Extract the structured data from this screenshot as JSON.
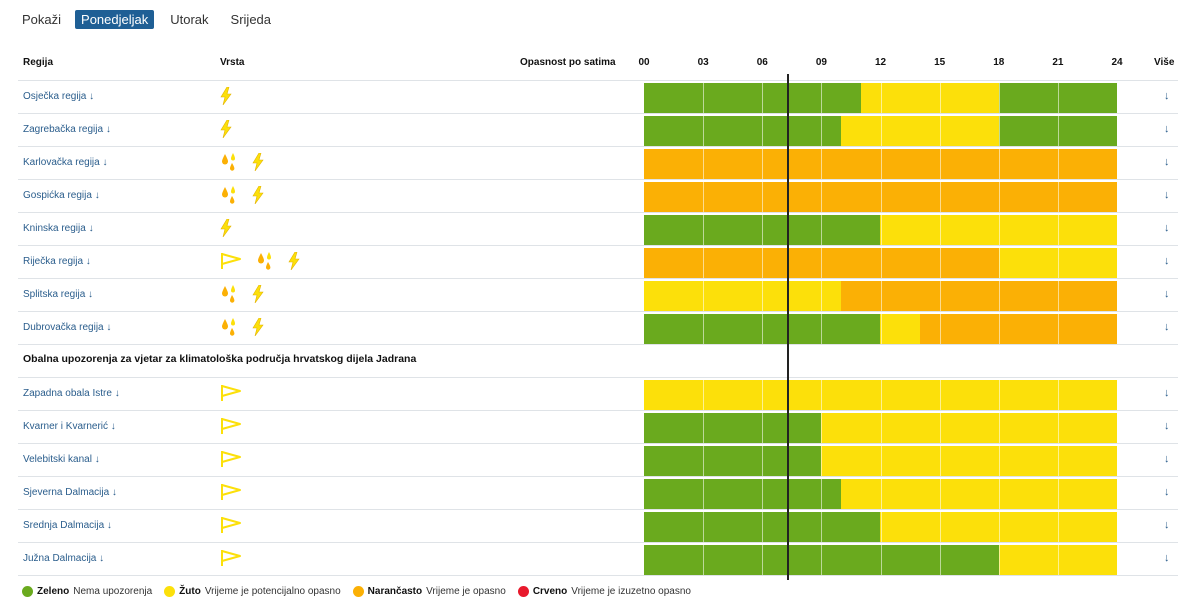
{
  "topbar": {
    "label": "Pokaži",
    "tabs": [
      "Ponedjeljak",
      "Utorak",
      "Srijeda"
    ],
    "active": 0
  },
  "header": {
    "region": "Regija",
    "type": "Vrsta",
    "danger": "Opasnost po satima",
    "hours": [
      "00",
      "03",
      "06",
      "09",
      "12",
      "15",
      "18",
      "21",
      "24"
    ],
    "more": "Više"
  },
  "colors": {
    "green": "#6aaa1e",
    "yellow": "#fce00a",
    "orange": "#fbb005",
    "red": "#e8192c"
  },
  "arrow": "↓",
  "groups": [
    {
      "rows": [
        {
          "region": "Osječka regija",
          "types": [
            "thunder-icon"
          ],
          "levels": [
            "green",
            "green",
            "green",
            "green",
            "green",
            "green",
            "green",
            "green",
            "green",
            "green",
            "green",
            "yellow",
            "yellow",
            "yellow",
            "yellow",
            "yellow",
            "yellow",
            "yellow",
            "green",
            "green",
            "green",
            "green",
            "green",
            "green"
          ]
        },
        {
          "region": "Zagrebačka regija",
          "types": [
            "thunder-icon"
          ],
          "levels": [
            "green",
            "green",
            "green",
            "green",
            "green",
            "green",
            "green",
            "green",
            "green",
            "green",
            "yellow",
            "yellow",
            "yellow",
            "yellow",
            "yellow",
            "yellow",
            "yellow",
            "yellow",
            "green",
            "green",
            "green",
            "green",
            "green",
            "green"
          ]
        },
        {
          "region": "Karlovačka regija",
          "types": [
            "rain-icon",
            "thunder-icon"
          ],
          "levels": [
            "orange",
            "orange",
            "orange",
            "orange",
            "orange",
            "orange",
            "orange",
            "orange",
            "orange",
            "orange",
            "orange",
            "orange",
            "orange",
            "orange",
            "orange",
            "orange",
            "orange",
            "orange",
            "orange",
            "orange",
            "orange",
            "orange",
            "orange",
            "orange"
          ]
        },
        {
          "region": "Gospićka regija",
          "types": [
            "rain-icon",
            "thunder-icon"
          ],
          "levels": [
            "orange",
            "orange",
            "orange",
            "orange",
            "orange",
            "orange",
            "orange",
            "orange",
            "orange",
            "orange",
            "orange",
            "orange",
            "orange",
            "orange",
            "orange",
            "orange",
            "orange",
            "orange",
            "orange",
            "orange",
            "orange",
            "orange",
            "orange",
            "orange"
          ]
        },
        {
          "region": "Kninska regija",
          "types": [
            "thunder-icon"
          ],
          "levels": [
            "green",
            "green",
            "green",
            "green",
            "green",
            "green",
            "green",
            "green",
            "green",
            "green",
            "green",
            "green",
            "yellow",
            "yellow",
            "yellow",
            "yellow",
            "yellow",
            "yellow",
            "yellow",
            "yellow",
            "yellow",
            "yellow",
            "yellow",
            "yellow"
          ]
        },
        {
          "region": "Riječka regija",
          "types": [
            "wind-icon",
            "rain-icon",
            "thunder-icon"
          ],
          "levels": [
            "orange",
            "orange",
            "orange",
            "orange",
            "orange",
            "orange",
            "orange",
            "orange",
            "orange",
            "orange",
            "orange",
            "orange",
            "orange",
            "orange",
            "orange",
            "orange",
            "orange",
            "orange",
            "yellow",
            "yellow",
            "yellow",
            "yellow",
            "yellow",
            "yellow"
          ]
        },
        {
          "region": "Splitska regija",
          "types": [
            "rain-icon",
            "thunder-icon"
          ],
          "levels": [
            "yellow",
            "yellow",
            "yellow",
            "yellow",
            "yellow",
            "yellow",
            "yellow",
            "yellow",
            "yellow",
            "yellow",
            "orange",
            "orange",
            "orange",
            "orange",
            "orange",
            "orange",
            "orange",
            "orange",
            "orange",
            "orange",
            "orange",
            "orange",
            "orange",
            "orange"
          ]
        },
        {
          "region": "Dubrovačka regija",
          "types": [
            "rain-icon",
            "thunder-icon"
          ],
          "levels": [
            "green",
            "green",
            "green",
            "green",
            "green",
            "green",
            "green",
            "green",
            "green",
            "green",
            "green",
            "green",
            "yellow",
            "yellow",
            "orange",
            "orange",
            "orange",
            "orange",
            "orange",
            "orange",
            "orange",
            "orange",
            "orange",
            "orange"
          ]
        }
      ]
    },
    {
      "title": "Obalna upozorenja za vjetar za klimatološka područja hrvatskog dijela Jadrana",
      "rows": [
        {
          "region": "Zapadna obala Istre",
          "types": [
            "wind-icon"
          ],
          "levels": [
            "yellow",
            "yellow",
            "yellow",
            "yellow",
            "yellow",
            "yellow",
            "yellow",
            "yellow",
            "yellow",
            "yellow",
            "yellow",
            "yellow",
            "yellow",
            "yellow",
            "yellow",
            "yellow",
            "yellow",
            "yellow",
            "yellow",
            "yellow",
            "yellow",
            "yellow",
            "yellow",
            "yellow"
          ]
        },
        {
          "region": "Kvarner i Kvarnerić",
          "types": [
            "wind-icon"
          ],
          "levels": [
            "green",
            "green",
            "green",
            "green",
            "green",
            "green",
            "green",
            "green",
            "green",
            "yellow",
            "yellow",
            "yellow",
            "yellow",
            "yellow",
            "yellow",
            "yellow",
            "yellow",
            "yellow",
            "yellow",
            "yellow",
            "yellow",
            "yellow",
            "yellow",
            "yellow"
          ]
        },
        {
          "region": "Velebitski kanal",
          "types": [
            "wind-icon"
          ],
          "levels": [
            "green",
            "green",
            "green",
            "green",
            "green",
            "green",
            "green",
            "green",
            "green",
            "yellow",
            "yellow",
            "yellow",
            "yellow",
            "yellow",
            "yellow",
            "yellow",
            "yellow",
            "yellow",
            "yellow",
            "yellow",
            "yellow",
            "yellow",
            "yellow",
            "yellow"
          ]
        },
        {
          "region": "Sjeverna Dalmacija",
          "types": [
            "wind-icon"
          ],
          "levels": [
            "green",
            "green",
            "green",
            "green",
            "green",
            "green",
            "green",
            "green",
            "green",
            "green",
            "yellow",
            "yellow",
            "yellow",
            "yellow",
            "yellow",
            "yellow",
            "yellow",
            "yellow",
            "yellow",
            "yellow",
            "yellow",
            "yellow",
            "yellow",
            "yellow"
          ]
        },
        {
          "region": "Srednja Dalmacija",
          "types": [
            "wind-icon"
          ],
          "levels": [
            "green",
            "green",
            "green",
            "green",
            "green",
            "green",
            "green",
            "green",
            "green",
            "green",
            "green",
            "green",
            "yellow",
            "yellow",
            "yellow",
            "yellow",
            "yellow",
            "yellow",
            "yellow",
            "yellow",
            "yellow",
            "yellow",
            "yellow",
            "yellow"
          ]
        },
        {
          "region": "Južna Dalmacija",
          "types": [
            "wind-icon"
          ],
          "levels": [
            "green",
            "green",
            "green",
            "green",
            "green",
            "green",
            "green",
            "green",
            "green",
            "green",
            "green",
            "green",
            "green",
            "green",
            "green",
            "green",
            "green",
            "green",
            "yellow",
            "yellow",
            "yellow",
            "yellow",
            "yellow",
            "yellow"
          ]
        }
      ]
    }
  ],
  "current_hour": 7,
  "legend": [
    {
      "color": "#6aaa1e",
      "name": "Zeleno",
      "desc": "Nema upozorenja"
    },
    {
      "color": "#fce00a",
      "name": "Žuto",
      "desc": "Vrijeme je potencijalno opasno"
    },
    {
      "color": "#fbb005",
      "name": "Narančasto",
      "desc": "Vrijeme je opasno"
    },
    {
      "color": "#e8192c",
      "name": "Crveno",
      "desc": "Vrijeme je izuzetno opasno"
    }
  ]
}
